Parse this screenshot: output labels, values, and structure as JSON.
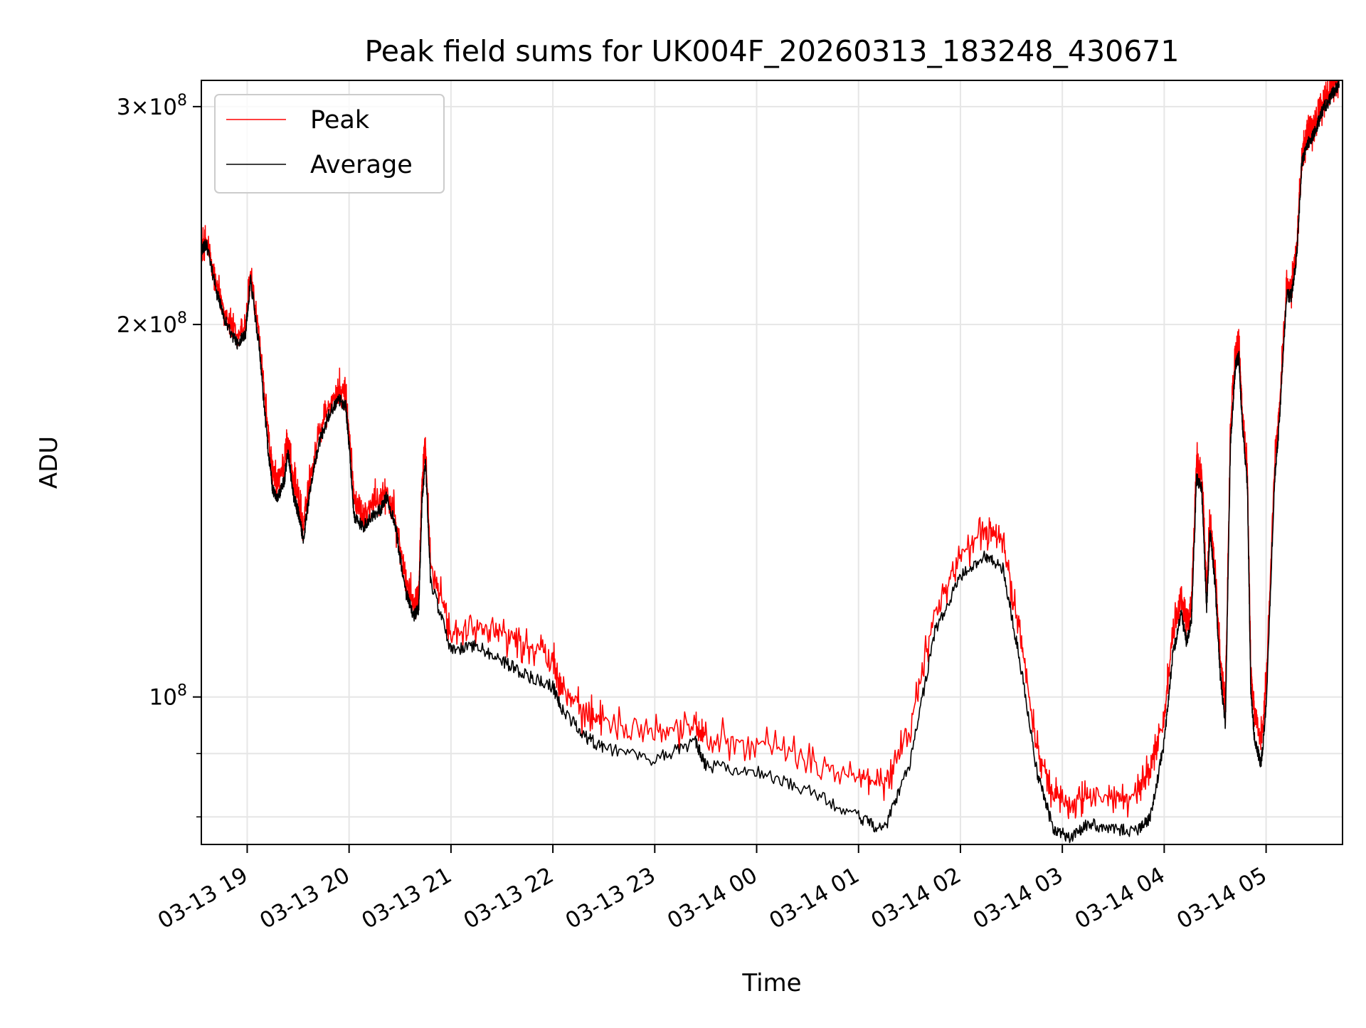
{
  "chart_data": {
    "type": "line",
    "title": "Peak field sums for UK004F_20260313_183248_430671",
    "xlabel": "Time",
    "ylabel": "ADU",
    "yscale": "log",
    "xlim": [
      "2026-03-13 18:33",
      "2026-03-14 05:45"
    ],
    "ylim": [
      76000000,
      315000000
    ],
    "grid": true,
    "legend": {
      "placement": "upper-left"
    },
    "x_ticks": [
      {
        "value": "2026-03-13 19:00",
        "label": "03-13 19"
      },
      {
        "value": "2026-03-13 20:00",
        "label": "03-13 20"
      },
      {
        "value": "2026-03-13 21:00",
        "label": "03-13 21"
      },
      {
        "value": "2026-03-13 22:00",
        "label": "03-13 22"
      },
      {
        "value": "2026-03-13 23:00",
        "label": "03-13 23"
      },
      {
        "value": "2026-03-14 00:00",
        "label": "03-14 00"
      },
      {
        "value": "2026-03-14 01:00",
        "label": "03-14 01"
      },
      {
        "value": "2026-03-14 02:00",
        "label": "03-14 02"
      },
      {
        "value": "2026-03-14 03:00",
        "label": "03-14 03"
      },
      {
        "value": "2026-03-14 04:00",
        "label": "03-14 04"
      },
      {
        "value": "2026-03-14 05:00",
        "label": "03-14 05"
      }
    ],
    "y_ticks": [
      {
        "value": 100000000,
        "base": "10",
        "exp": "8"
      },
      {
        "value": 200000000,
        "mant": "2",
        "times": "×",
        "base": "10",
        "exp": "8"
      },
      {
        "value": 300000000,
        "mant": "3",
        "times": "×",
        "base": "10",
        "exp": "8"
      }
    ],
    "y_minor_ticks": [
      80000000,
      90000000
    ],
    "series": [
      {
        "name": "Peak",
        "color": "#ff0000",
        "x": [
          "2026-03-13 18:33",
          "2026-03-13 18:36",
          "2026-03-13 18:42",
          "2026-03-13 18:48",
          "2026-03-13 18:54",
          "2026-03-13 18:59",
          "2026-03-13 19:02",
          "2026-03-13 19:07",
          "2026-03-13 19:12",
          "2026-03-13 19:15",
          "2026-03-13 19:18",
          "2026-03-13 19:22",
          "2026-03-13 19:24",
          "2026-03-13 19:27",
          "2026-03-13 19:30",
          "2026-03-13 19:33",
          "2026-03-13 19:37",
          "2026-03-13 19:42",
          "2026-03-13 19:48",
          "2026-03-13 19:54",
          "2026-03-13 19:58",
          "2026-03-13 20:00",
          "2026-03-13 20:03",
          "2026-03-13 20:08",
          "2026-03-13 20:13",
          "2026-03-13 20:19",
          "2026-03-13 20:22",
          "2026-03-13 20:27",
          "2026-03-13 20:33",
          "2026-03-13 20:38",
          "2026-03-13 20:41",
          "2026-03-13 20:43",
          "2026-03-13 20:45",
          "2026-03-13 20:48",
          "2026-03-13 21:00",
          "2026-03-13 21:15",
          "2026-03-13 21:30",
          "2026-03-13 21:45",
          "2026-03-13 22:00",
          "2026-03-13 22:05",
          "2026-03-13 22:18",
          "2026-03-13 22:30",
          "2026-03-13 23:00",
          "2026-03-13 23:24",
          "2026-03-13 23:30",
          "2026-03-14 00:00",
          "2026-03-14 00:30",
          "2026-03-14 01:00",
          "2026-03-14 01:15",
          "2026-03-14 01:30",
          "2026-03-14 01:45",
          "2026-03-14 02:00",
          "2026-03-14 02:15",
          "2026-03-14 02:25",
          "2026-03-14 02:35",
          "2026-03-14 02:45",
          "2026-03-14 02:55",
          "2026-03-14 03:05",
          "2026-03-14 03:15",
          "2026-03-14 03:30",
          "2026-03-14 03:45",
          "2026-03-14 03:52",
          "2026-03-14 04:00",
          "2026-03-14 04:05",
          "2026-03-14 04:10",
          "2026-03-14 04:13",
          "2026-03-14 04:16",
          "2026-03-14 04:19",
          "2026-03-14 04:22",
          "2026-03-14 04:25",
          "2026-03-14 04:27",
          "2026-03-14 04:30",
          "2026-03-14 04:33",
          "2026-03-14 04:36",
          "2026-03-14 04:39",
          "2026-03-14 04:42",
          "2026-03-14 04:44",
          "2026-03-14 04:46",
          "2026-03-14 04:49",
          "2026-03-14 04:51",
          "2026-03-14 04:53",
          "2026-03-14 04:57",
          "2026-03-14 05:00",
          "2026-03-14 05:05",
          "2026-03-14 05:08",
          "2026-03-14 05:12",
          "2026-03-14 05:15",
          "2026-03-14 05:18",
          "2026-03-14 05:21",
          "2026-03-14 05:24",
          "2026-03-14 05:27",
          "2026-03-14 05:30",
          "2026-03-14 05:33",
          "2026-03-14 05:36",
          "2026-03-14 05:40",
          "2026-03-14 05:43"
        ],
        "y": [
          232000000,
          234000000,
          215000000,
          203000000,
          195000000,
          200000000,
          220000000,
          195000000,
          165000000,
          151000000,
          149000000,
          155000000,
          162000000,
          150000000,
          145000000,
          137000000,
          150000000,
          163000000,
          172000000,
          177000000,
          175000000,
          163000000,
          145000000,
          140000000,
          143000000,
          145000000,
          147000000,
          140000000,
          125000000,
          119000000,
          122000000,
          150000000,
          158000000,
          128000000,
          113000000,
          114000000,
          113000000,
          110000000,
          108000000,
          102000000,
          97000000,
          96000000,
          94000000,
          95000000,
          93000000,
          92000000,
          89000000,
          86000000,
          85000000,
          94000000,
          117000000,
          130000000,
          137000000,
          133000000,
          113000000,
          91000000,
          83000000,
          82000000,
          83000000,
          83000000,
          84000000,
          88000000,
          96000000,
          112000000,
          121000000,
          115000000,
          118000000,
          155000000,
          152000000,
          122000000,
          140000000,
          126000000,
          108000000,
          98000000,
          165000000,
          190000000,
          192000000,
          170000000,
          152000000,
          105000000,
          98000000,
          92000000,
          102000000,
          155000000,
          172000000,
          215000000,
          215000000,
          230000000,
          275000000,
          283000000,
          287000000,
          293000000,
          302000000,
          306000000,
          313000000,
          315000000
        ]
      },
      {
        "name": "Average",
        "color": "#000000",
        "x": [
          "2026-03-13 18:33",
          "2026-03-13 18:36",
          "2026-03-13 18:42",
          "2026-03-13 18:48",
          "2026-03-13 18:54",
          "2026-03-13 18:59",
          "2026-03-13 19:02",
          "2026-03-13 19:07",
          "2026-03-13 19:12",
          "2026-03-13 19:15",
          "2026-03-13 19:18",
          "2026-03-13 19:22",
          "2026-03-13 19:24",
          "2026-03-13 19:27",
          "2026-03-13 19:30",
          "2026-03-13 19:33",
          "2026-03-13 19:37",
          "2026-03-13 19:42",
          "2026-03-13 19:48",
          "2026-03-13 19:54",
          "2026-03-13 19:58",
          "2026-03-13 20:00",
          "2026-03-13 20:03",
          "2026-03-13 20:08",
          "2026-03-13 20:13",
          "2026-03-13 20:19",
          "2026-03-13 20:22",
          "2026-03-13 20:27",
          "2026-03-13 20:33",
          "2026-03-13 20:38",
          "2026-03-13 20:41",
          "2026-03-13 20:43",
          "2026-03-13 20:45",
          "2026-03-13 20:48",
          "2026-03-13 21:00",
          "2026-03-13 21:15",
          "2026-03-13 21:30",
          "2026-03-13 21:45",
          "2026-03-13 22:00",
          "2026-03-13 22:05",
          "2026-03-13 22:18",
          "2026-03-13 22:30",
          "2026-03-13 23:00",
          "2026-03-13 23:24",
          "2026-03-13 23:30",
          "2026-03-14 00:00",
          "2026-03-14 00:30",
          "2026-03-14 01:00",
          "2026-03-14 01:15",
          "2026-03-14 01:30",
          "2026-03-14 01:45",
          "2026-03-14 02:00",
          "2026-03-14 02:15",
          "2026-03-14 02:25",
          "2026-03-14 02:35",
          "2026-03-14 02:45",
          "2026-03-14 02:55",
          "2026-03-14 03:05",
          "2026-03-14 03:15",
          "2026-03-14 03:30",
          "2026-03-14 03:45",
          "2026-03-14 03:52",
          "2026-03-14 04:00",
          "2026-03-14 04:05",
          "2026-03-14 04:10",
          "2026-03-14 04:13",
          "2026-03-14 04:16",
          "2026-03-14 04:19",
          "2026-03-14 04:22",
          "2026-03-14 04:25",
          "2026-03-14 04:27",
          "2026-03-14 04:30",
          "2026-03-14 04:33",
          "2026-03-14 04:36",
          "2026-03-14 04:39",
          "2026-03-14 04:42",
          "2026-03-14 04:44",
          "2026-03-14 04:46",
          "2026-03-14 04:49",
          "2026-03-14 04:51",
          "2026-03-14 04:53",
          "2026-03-14 04:57",
          "2026-03-14 05:00",
          "2026-03-14 05:05",
          "2026-03-14 05:08",
          "2026-03-14 05:12",
          "2026-03-14 05:15",
          "2026-03-14 05:18",
          "2026-03-14 05:21",
          "2026-03-14 05:24",
          "2026-03-14 05:27",
          "2026-03-14 05:30",
          "2026-03-14 05:33",
          "2026-03-14 05:36",
          "2026-03-14 05:40",
          "2026-03-14 05:43"
        ],
        "y": [
          230000000,
          232000000,
          212000000,
          200000000,
          193000000,
          197000000,
          217000000,
          192000000,
          160000000,
          147000000,
          145000000,
          150000000,
          158000000,
          146000000,
          141000000,
          134000000,
          147000000,
          160000000,
          169000000,
          174000000,
          172000000,
          160000000,
          140000000,
          137000000,
          140000000,
          142000000,
          145000000,
          138000000,
          122000000,
          116000000,
          118000000,
          145000000,
          155000000,
          124000000,
          109000000,
          110000000,
          107000000,
          104000000,
          102000000,
          98000000,
          93000000,
          91000000,
          89000000,
          92000000,
          88000000,
          87000000,
          84000000,
          80000000,
          78000000,
          88000000,
          113000000,
          125000000,
          130000000,
          127000000,
          107000000,
          87000000,
          78000000,
          77000000,
          79000000,
          78000000,
          78000000,
          80000000,
          92000000,
          108000000,
          117000000,
          111000000,
          115000000,
          150000000,
          148000000,
          118000000,
          137000000,
          123000000,
          104000000,
          95000000,
          160000000,
          186000000,
          188000000,
          166000000,
          148000000,
          101000000,
          93000000,
          88000000,
          98000000,
          150000000,
          168000000,
          211000000,
          211000000,
          227000000,
          270000000,
          279000000,
          283000000,
          289000000,
          298000000,
          302000000,
          309000000,
          313000000
        ]
      }
    ]
  }
}
